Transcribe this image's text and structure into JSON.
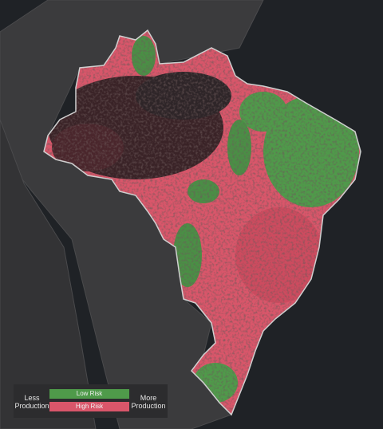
{
  "legend": {
    "left_label": "Less Production",
    "low": "Low Risk",
    "high": "High Risk",
    "right_label": "More Production"
  }
}
